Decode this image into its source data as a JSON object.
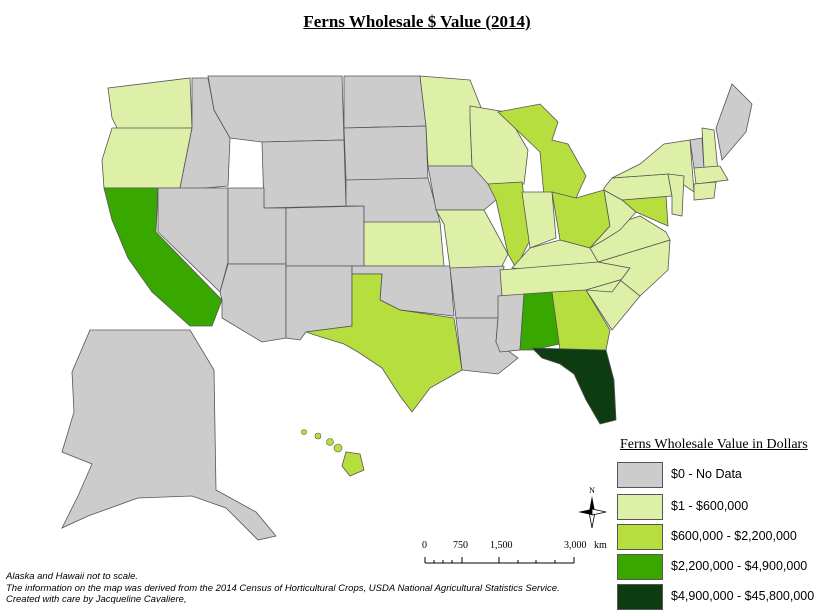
{
  "title": "Ferns Wholesale $ Value (2014)",
  "legend": {
    "title": "Ferns Wholesale Value in Dollars",
    "items": [
      {
        "label": "$0 - No Data",
        "color": "#cccccc"
      },
      {
        "label": "$1 - $600,000",
        "color": "#def0a8"
      },
      {
        "label": "$600,000 - $2,200,000",
        "color": "#b6de3f"
      },
      {
        "label": "$2,200,000 - $4,900,000",
        "color": "#38a800"
      },
      {
        "label": "$4,900,000 - $45,800,000",
        "color": "#0d3b12"
      }
    ]
  },
  "scale": {
    "ticks": [
      "0",
      "750",
      "1,500",
      "3,000"
    ],
    "unit": "km"
  },
  "north_label": "N",
  "notes": [
    "Alaska and Hawaii not to scale.",
    "The information on the map was derived from the 2014 Census of Horticultural Crops, USDA National Agricultural Statistics Service.",
    "Created with care by Jacqueline Cavaliere,"
  ],
  "states": [
    {
      "name": "Washington",
      "cls": 1
    },
    {
      "name": "Oregon",
      "cls": 1
    },
    {
      "name": "California",
      "cls": 3
    },
    {
      "name": "Idaho",
      "cls": 0
    },
    {
      "name": "Nevada",
      "cls": 0
    },
    {
      "name": "Montana",
      "cls": 0
    },
    {
      "name": "Wyoming",
      "cls": 0
    },
    {
      "name": "Utah",
      "cls": 0
    },
    {
      "name": "Arizona",
      "cls": 0
    },
    {
      "name": "Colorado",
      "cls": 0
    },
    {
      "name": "New Mexico",
      "cls": 0
    },
    {
      "name": "North Dakota",
      "cls": 0
    },
    {
      "name": "South Dakota",
      "cls": 0
    },
    {
      "name": "Nebraska",
      "cls": 0
    },
    {
      "name": "Kansas",
      "cls": 1
    },
    {
      "name": "Oklahoma",
      "cls": 0
    },
    {
      "name": "Texas",
      "cls": 2
    },
    {
      "name": "Minnesota",
      "cls": 1
    },
    {
      "name": "Iowa",
      "cls": 0
    },
    {
      "name": "Missouri",
      "cls": 1
    },
    {
      "name": "Arkansas",
      "cls": 0
    },
    {
      "name": "Louisiana",
      "cls": 0
    },
    {
      "name": "Wisconsin",
      "cls": 1
    },
    {
      "name": "Illinois",
      "cls": 2
    },
    {
      "name": "Michigan",
      "cls": 2
    },
    {
      "name": "Indiana",
      "cls": 1
    },
    {
      "name": "Ohio",
      "cls": 2
    },
    {
      "name": "Kentucky",
      "cls": 1
    },
    {
      "name": "Tennessee",
      "cls": 1
    },
    {
      "name": "Mississippi",
      "cls": 0
    },
    {
      "name": "Alabama",
      "cls": 3
    },
    {
      "name": "Georgia",
      "cls": 2
    },
    {
      "name": "Florida",
      "cls": 4
    },
    {
      "name": "South Carolina",
      "cls": 1
    },
    {
      "name": "North Carolina",
      "cls": 1
    },
    {
      "name": "Virginia",
      "cls": 1
    },
    {
      "name": "West Virginia",
      "cls": 1
    },
    {
      "name": "Maryland",
      "cls": 2
    },
    {
      "name": "Pennsylvania",
      "cls": 1
    },
    {
      "name": "New York",
      "cls": 1
    },
    {
      "name": "New Jersey",
      "cls": 1
    },
    {
      "name": "Vermont",
      "cls": 0
    },
    {
      "name": "New Hampshire",
      "cls": 1
    },
    {
      "name": "Maine",
      "cls": 0
    },
    {
      "name": "Massachusetts",
      "cls": 1
    },
    {
      "name": "Connecticut",
      "cls": 1
    },
    {
      "name": "Alaska",
      "cls": 0
    },
    {
      "name": "Hawaii",
      "cls": 2
    }
  ]
}
